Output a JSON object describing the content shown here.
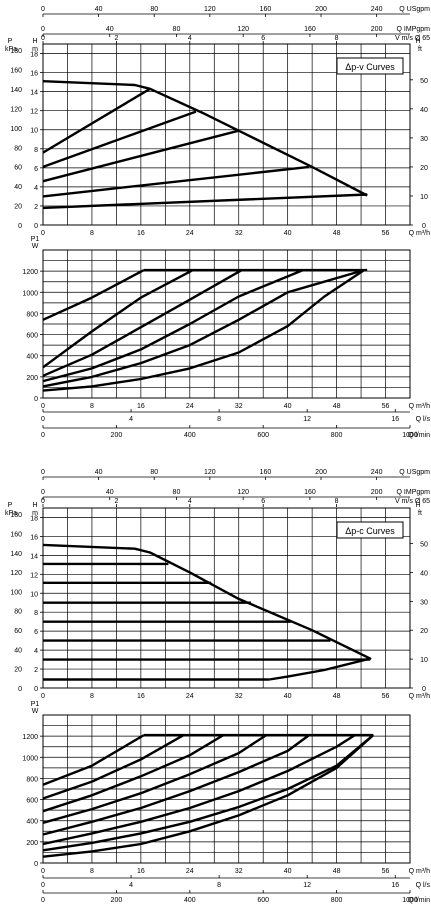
{
  "chart_data": [
    {
      "type": "line",
      "title": "Δp-v Curves",
      "top_axes": [
        {
          "label": "Q USgpm",
          "ticks": [
            "0",
            "40",
            "80",
            "120",
            "160",
            "200",
            "240"
          ],
          "max": 264
        },
        {
          "label": "Q IMPgpm",
          "ticks": [
            "0",
            "40",
            "80",
            "120",
            "160",
            "200"
          ],
          "max": 220
        },
        {
          "label": "V m/s Ø 65",
          "ticks": [
            "0",
            "2",
            "4",
            "6",
            "8"
          ],
          "max": 10.0
        }
      ],
      "head_panel": {
        "left_label_1": "P kPa",
        "left_label_2": "H m",
        "right_label": "H ft",
        "kpa_ticks": [
          "0",
          "20",
          "40",
          "60",
          "80",
          "100",
          "120",
          "140",
          "160",
          "180"
        ],
        "m_ticks": [
          "0",
          "2",
          "4",
          "6",
          "8",
          "10",
          "12",
          "14",
          "16",
          "18"
        ],
        "ft_ticks": [
          "0",
          "10",
          "20",
          "30",
          "40",
          "50"
        ],
        "x_ticks": [
          "0",
          "8",
          "16",
          "24",
          "32",
          "40",
          "48",
          "56"
        ],
        "x_label": "Q m³/h",
        "xlim": [
          0,
          60
        ],
        "ylim": [
          0,
          19
        ],
        "series": [
          {
            "values": [
              [
                0,
                15.1
              ],
              [
                15,
                14.7
              ],
              [
                17.5,
                14.3
              ],
              [
                26,
                11.8
              ],
              [
                32,
                9.9
              ],
              [
                44,
                6.1
              ],
              [
                53,
                3.1
              ]
            ]
          },
          {
            "values": [
              [
                0,
                7.6
              ],
              [
                17.5,
                14.3
              ]
            ]
          },
          {
            "values": [
              [
                0,
                6.1
              ],
              [
                25,
                11.9
              ]
            ]
          },
          {
            "values": [
              [
                0,
                4.6
              ],
              [
                32,
                9.9
              ]
            ]
          },
          {
            "values": [
              [
                0,
                3.0
              ],
              [
                43.5,
                6.1
              ]
            ]
          },
          {
            "values": [
              [
                0,
                1.8
              ],
              [
                53,
                3.2
              ]
            ]
          }
        ]
      },
      "power_panel": {
        "y_label": "P1 W",
        "y_ticks": [
          "0",
          "200",
          "400",
          "600",
          "800",
          "1000",
          "1200"
        ],
        "x_ticks": [
          "0",
          "8",
          "16",
          "24",
          "32",
          "40",
          "48",
          "56"
        ],
        "x_label": "Q m³/h",
        "xlim": [
          0,
          60
        ],
        "ylim": [
          0,
          1400
        ],
        "series": [
          {
            "values": [
              [
                16.5,
                1210
              ],
              [
                53,
                1210
              ]
            ]
          },
          {
            "values": [
              [
                0,
                740
              ],
              [
                8,
                950
              ],
              [
                16.5,
                1210
              ]
            ]
          },
          {
            "values": [
              [
                0,
                290
              ],
              [
                8,
                630
              ],
              [
                16,
                950
              ],
              [
                24.5,
                1210
              ]
            ]
          },
          {
            "values": [
              [
                0,
                210
              ],
              [
                8,
                410
              ],
              [
                16,
                670
              ],
              [
                24,
                930
              ],
              [
                32.5,
                1210
              ]
            ]
          },
          {
            "values": [
              [
                0,
                160
              ],
              [
                8,
                280
              ],
              [
                16,
                460
              ],
              [
                24,
                700
              ],
              [
                32,
                960
              ],
              [
                42.5,
                1210
              ]
            ]
          },
          {
            "values": [
              [
                0,
                110
              ],
              [
                8,
                200
              ],
              [
                16,
                330
              ],
              [
                24,
                500
              ],
              [
                32,
                740
              ],
              [
                40,
                1000
              ],
              [
                52.5,
                1210
              ]
            ]
          },
          {
            "values": [
              [
                0,
                70
              ],
              [
                8,
                110
              ],
              [
                16,
                180
              ],
              [
                24,
                280
              ],
              [
                32,
                430
              ],
              [
                40,
                680
              ],
              [
                46,
                960
              ],
              [
                52.5,
                1210
              ]
            ]
          }
        ]
      },
      "bottom_axes": [
        {
          "label": "Q l/s",
          "ticks": [
            "0",
            "4",
            "8",
            "12",
            "16"
          ],
          "max": 16.67
        },
        {
          "label": "Q l/min",
          "ticks": [
            "0",
            "200",
            "400",
            "600",
            "800",
            "1000"
          ],
          "max": 1000
        }
      ]
    },
    {
      "type": "line",
      "title": "Δp-c Curves",
      "top_axes": [
        {
          "label": "Q USgpm",
          "ticks": [
            "0",
            "40",
            "80",
            "120",
            "160",
            "200",
            "240"
          ],
          "max": 264
        },
        {
          "label": "Q IMPgpm",
          "ticks": [
            "0",
            "40",
            "80",
            "120",
            "160",
            "200"
          ],
          "max": 220
        },
        {
          "label": "V m/s Ø 65",
          "ticks": [
            "0",
            "2",
            "4",
            "6",
            "8"
          ],
          "max": 10.0
        }
      ],
      "head_panel": {
        "left_label_1": "P kPa",
        "left_label_2": "H m",
        "right_label": "H ft",
        "kpa_ticks": [
          "0",
          "20",
          "40",
          "60",
          "80",
          "100",
          "120",
          "140",
          "160",
          "180"
        ],
        "m_ticks": [
          "0",
          "2",
          "4",
          "6",
          "8",
          "10",
          "12",
          "14",
          "16",
          "18"
        ],
        "ft_ticks": [
          "0",
          "10",
          "20",
          "30",
          "40",
          "50"
        ],
        "x_ticks": [
          "0",
          "8",
          "16",
          "24",
          "32",
          "40",
          "48",
          "56"
        ],
        "x_label": "Q m³/h",
        "xlim": [
          0,
          60
        ],
        "ylim": [
          0,
          19
        ],
        "series": [
          {
            "values": [
              [
                0,
                15.1
              ],
              [
                15,
                14.7
              ],
              [
                17.5,
                14.3
              ],
              [
                24,
                12.2
              ],
              [
                32,
                9.4
              ],
              [
                44,
                6.1
              ],
              [
                53.5,
                3.1
              ],
              [
                46,
                1.9
              ],
              [
                40,
                1.2
              ],
              [
                37,
                0.9
              ]
            ]
          },
          {
            "values": [
              [
                0,
                13.1
              ],
              [
                20.5,
                13.1
              ]
            ]
          },
          {
            "values": [
              [
                0,
                11.1
              ],
              [
                27.5,
                11.1
              ]
            ]
          },
          {
            "values": [
              [
                0,
                9.0
              ],
              [
                34,
                9.0
              ]
            ]
          },
          {
            "values": [
              [
                0,
                7.0
              ],
              [
                40.5,
                7.0
              ]
            ]
          },
          {
            "values": [
              [
                0,
                5.0
              ],
              [
                47,
                5.0
              ]
            ]
          },
          {
            "values": [
              [
                0,
                3.0
              ],
              [
                53.5,
                3.0
              ]
            ]
          },
          {
            "values": [
              [
                0,
                0.9
              ],
              [
                37,
                0.9
              ]
            ]
          }
        ]
      },
      "power_panel": {
        "y_label": "P1 W",
        "y_ticks": [
          "0",
          "200",
          "400",
          "600",
          "800",
          "1000",
          "1200"
        ],
        "x_ticks": [
          "0",
          "8",
          "16",
          "24",
          "32",
          "40",
          "48",
          "56"
        ],
        "x_label": "Q m³/h",
        "xlim": [
          0,
          60
        ],
        "ylim": [
          0,
          1400
        ],
        "series": [
          {
            "values": [
              [
                16.5,
                1210
              ],
              [
                54,
                1210
              ]
            ]
          },
          {
            "values": [
              [
                0,
                740
              ],
              [
                8,
                920
              ],
              [
                16.5,
                1210
              ]
            ]
          },
          {
            "values": [
              [
                0,
                610
              ],
              [
                8,
                770
              ],
              [
                16,
                980
              ],
              [
                23,
                1210
              ]
            ]
          },
          {
            "values": [
              [
                0,
                490
              ],
              [
                8,
                640
              ],
              [
                16,
                820
              ],
              [
                24,
                1020
              ],
              [
                29.5,
                1210
              ]
            ]
          },
          {
            "values": [
              [
                0,
                380
              ],
              [
                8,
                510
              ],
              [
                16,
                660
              ],
              [
                24,
                840
              ],
              [
                32,
                1040
              ],
              [
                36.5,
                1210
              ]
            ]
          },
          {
            "values": [
              [
                0,
                270
              ],
              [
                8,
                390
              ],
              [
                16,
                520
              ],
              [
                24,
                680
              ],
              [
                32,
                860
              ],
              [
                40,
                1060
              ],
              [
                43.5,
                1210
              ]
            ]
          },
          {
            "values": [
              [
                0,
                180
              ],
              [
                8,
                280
              ],
              [
                16,
                390
              ],
              [
                24,
                520
              ],
              [
                32,
                680
              ],
              [
                40,
                870
              ],
              [
                48,
                1100
              ],
              [
                51,
                1210
              ]
            ]
          },
          {
            "values": [
              [
                0,
                120
              ],
              [
                8,
                190
              ],
              [
                16,
                280
              ],
              [
                24,
                390
              ],
              [
                32,
                530
              ],
              [
                40,
                700
              ],
              [
                48,
                920
              ],
              [
                54,
                1210
              ]
            ]
          },
          {
            "values": [
              [
                0,
                60
              ],
              [
                8,
                110
              ],
              [
                16,
                180
              ],
              [
                24,
                300
              ],
              [
                32,
                450
              ],
              [
                40,
                640
              ],
              [
                48,
                900
              ],
              [
                54,
                1210
              ]
            ]
          }
        ]
      },
      "bottom_axes": [
        {
          "label": "Q l/s",
          "ticks": [
            "0",
            "4",
            "8",
            "12",
            "16"
          ],
          "max": 16.67
        },
        {
          "label": "Q l/min",
          "ticks": [
            "0",
            "200",
            "400",
            "600",
            "800",
            "1000"
          ],
          "max": 1000
        }
      ]
    }
  ]
}
